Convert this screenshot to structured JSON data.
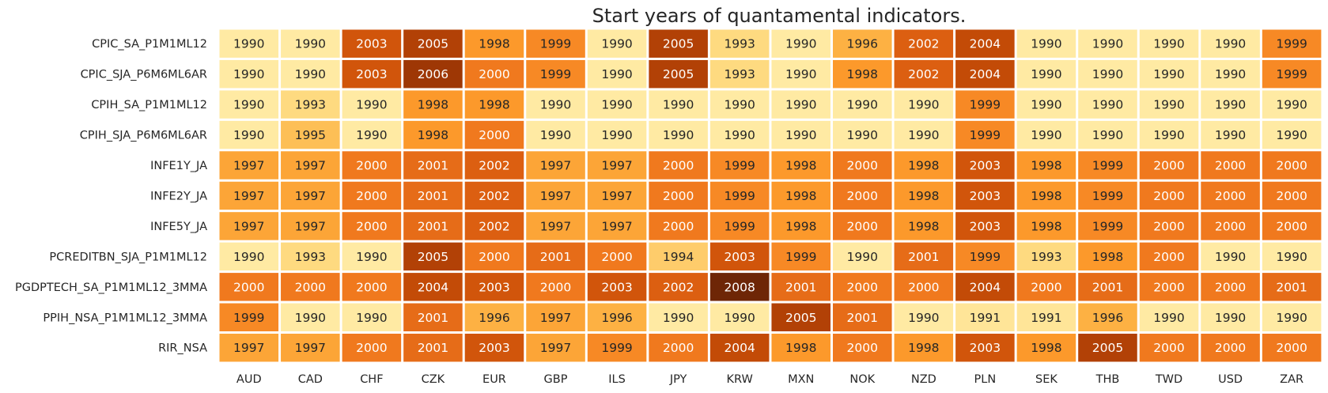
{
  "chart_data": {
    "type": "heatmap",
    "title": "Start years of quantamental indicators.",
    "xlabel": "",
    "ylabel": "",
    "columns": [
      "AUD",
      "CAD",
      "CHF",
      "CZK",
      "EUR",
      "GBP",
      "ILS",
      "JPY",
      "KRW",
      "MXN",
      "NOK",
      "NZD",
      "PLN",
      "SEK",
      "THB",
      "TWD",
      "USD",
      "ZAR"
    ],
    "rows": [
      "CPIC_SA_P1M1ML12",
      "CPIC_SJA_P6M6ML6AR",
      "CPIH_SA_P1M1ML12",
      "CPIH_SJA_P6M6ML6AR",
      "INFE1Y_JA",
      "INFE2Y_JA",
      "INFE5Y_JA",
      "PCREDITBN_SJA_P1M1ML12",
      "PGDPTECH_SA_P1M1ML12_3MMA",
      "PPIH_NSA_P1M1ML12_3MMA",
      "RIR_NSA"
    ],
    "values": [
      [
        1990,
        1990,
        2003,
        2005,
        1998,
        1999,
        1990,
        2005,
        1993,
        1990,
        1996,
        2002,
        2004,
        1990,
        1990,
        1990,
        1990,
        1999
      ],
      [
        1990,
        1990,
        2003,
        2006,
        2000,
        1999,
        1990,
        2005,
        1993,
        1990,
        1998,
        2002,
        2004,
        1990,
        1990,
        1990,
        1990,
        1999
      ],
      [
        1990,
        1993,
        1990,
        1998,
        1998,
        1990,
        1990,
        1990,
        1990,
        1990,
        1990,
        1990,
        1999,
        1990,
        1990,
        1990,
        1990,
        1990
      ],
      [
        1990,
        1995,
        1990,
        1998,
        2000,
        1990,
        1990,
        1990,
        1990,
        1990,
        1990,
        1990,
        1999,
        1990,
        1990,
        1990,
        1990,
        1990
      ],
      [
        1997,
        1997,
        2000,
        2001,
        2002,
        1997,
        1997,
        2000,
        1999,
        1998,
        2000,
        1998,
        2003,
        1998,
        1999,
        2000,
        2000,
        2000
      ],
      [
        1997,
        1997,
        2000,
        2001,
        2002,
        1997,
        1997,
        2000,
        1999,
        1998,
        2000,
        1998,
        2003,
        1998,
        1999,
        2000,
        2000,
        2000
      ],
      [
        1997,
        1997,
        2000,
        2001,
        2002,
        1997,
        1997,
        2000,
        1999,
        1998,
        2000,
        1998,
        2003,
        1998,
        1999,
        2000,
        2000,
        2000
      ],
      [
        1990,
        1993,
        1990,
        2005,
        2000,
        2001,
        2000,
        1994,
        2003,
        1999,
        1990,
        2001,
        1999,
        1993,
        1998,
        2000,
        1990,
        1990
      ],
      [
        2000,
        2000,
        2000,
        2004,
        2003,
        2000,
        2003,
        2002,
        2008,
        2001,
        2000,
        2000,
        2004,
        2000,
        2001,
        2000,
        2000,
        2001
      ],
      [
        1999,
        1990,
        1990,
        2001,
        1996,
        1997,
        1996,
        1990,
        1990,
        2005,
        2001,
        1990,
        1991,
        1991,
        1996,
        1990,
        1990,
        1990
      ],
      [
        1997,
        1997,
        2000,
        2001,
        2003,
        1997,
        1999,
        2000,
        2004,
        1998,
        2000,
        1998,
        2003,
        1998,
        2005,
        2000,
        2000,
        2000
      ]
    ],
    "colormap": "YlOrBr",
    "vmin": 1990,
    "vmax": 2008,
    "legend": "none",
    "grid": false
  }
}
